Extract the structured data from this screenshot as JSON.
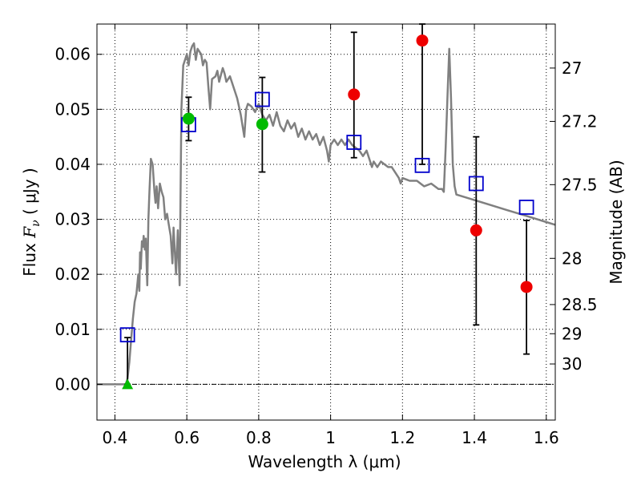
{
  "chart_data": {
    "type": "scatter",
    "xlabel": "Wavelength  λ (μm)",
    "ylabel_prefix": "Flux  ",
    "ylabel_symbol": "F",
    "ylabel_sub": "ν",
    "ylabel_suffix": "  ( μJy )",
    "y2label": "Magnitude (AB)",
    "xlim": [
      0.35,
      1.625
    ],
    "ylim": [
      -0.0065,
      0.0655
    ],
    "xticks": [
      0.4,
      0.6,
      0.8,
      1.0,
      1.2,
      1.4,
      1.6
    ],
    "xtick_labels": [
      "0.4",
      "0.6",
      "0.8",
      "1",
      "1.2",
      "1.4",
      "1.6"
    ],
    "yticks": [
      0.0,
      0.01,
      0.02,
      0.03,
      0.04,
      0.05,
      0.06
    ],
    "ytick_labels": [
      "0.00",
      "0.01",
      "0.02",
      "0.03",
      "0.04",
      "0.05",
      "0.06"
    ],
    "y2ticks": [
      {
        "label": "27",
        "flux": 0.0575
      },
      {
        "label": "27.2",
        "flux": 0.0478
      },
      {
        "label": "27.5",
        "flux": 0.0363
      },
      {
        "label": "28",
        "flux": 0.0229
      },
      {
        "label": "28.5",
        "flux": 0.0145
      },
      {
        "label": "29",
        "flux": 0.0092
      },
      {
        "label": "30",
        "flux": 0.0037
      }
    ],
    "grid": true,
    "model_sed": {
      "color": "#808080",
      "points": [
        [
          0.35,
          0.0
        ],
        [
          0.43,
          0.0
        ],
        [
          0.435,
          0.001
        ],
        [
          0.44,
          0.004
        ],
        [
          0.445,
          0.008
        ],
        [
          0.45,
          0.012
        ],
        [
          0.455,
          0.015
        ],
        [
          0.46,
          0.0165
        ],
        [
          0.465,
          0.02
        ],
        [
          0.468,
          0.017
        ],
        [
          0.47,
          0.024
        ],
        [
          0.472,
          0.021
        ],
        [
          0.475,
          0.026
        ],
        [
          0.478,
          0.025
        ],
        [
          0.48,
          0.027
        ],
        [
          0.483,
          0.0245
        ],
        [
          0.486,
          0.0265
        ],
        [
          0.49,
          0.018
        ],
        [
          0.493,
          0.03
        ],
        [
          0.496,
          0.035
        ],
        [
          0.5,
          0.041
        ],
        [
          0.505,
          0.04
        ],
        [
          0.51,
          0.035
        ],
        [
          0.513,
          0.033
        ],
        [
          0.516,
          0.036
        ],
        [
          0.52,
          0.032
        ],
        [
          0.525,
          0.0365
        ],
        [
          0.53,
          0.035
        ],
        [
          0.535,
          0.034
        ],
        [
          0.54,
          0.03
        ],
        [
          0.545,
          0.031
        ],
        [
          0.55,
          0.029
        ],
        [
          0.555,
          0.027
        ],
        [
          0.56,
          0.022
        ],
        [
          0.563,
          0.0285
        ],
        [
          0.566,
          0.025
        ],
        [
          0.57,
          0.02
        ],
        [
          0.575,
          0.028
        ],
        [
          0.58,
          0.018
        ],
        [
          0.585,
          0.05
        ],
        [
          0.59,
          0.058
        ],
        [
          0.6,
          0.06
        ],
        [
          0.605,
          0.058
        ],
        [
          0.61,
          0.0605
        ],
        [
          0.615,
          0.0615
        ],
        [
          0.62,
          0.062
        ],
        [
          0.625,
          0.059
        ],
        [
          0.63,
          0.061
        ],
        [
          0.64,
          0.06
        ],
        [
          0.645,
          0.058
        ],
        [
          0.65,
          0.059
        ],
        [
          0.655,
          0.0585
        ],
        [
          0.66,
          0.054
        ],
        [
          0.665,
          0.05
        ],
        [
          0.67,
          0.0555
        ],
        [
          0.68,
          0.056
        ],
        [
          0.685,
          0.057
        ],
        [
          0.69,
          0.055
        ],
        [
          0.7,
          0.0575
        ],
        [
          0.705,
          0.0565
        ],
        [
          0.71,
          0.055
        ],
        [
          0.72,
          0.056
        ],
        [
          0.73,
          0.054
        ],
        [
          0.74,
          0.052
        ],
        [
          0.75,
          0.049
        ],
        [
          0.755,
          0.047
        ],
        [
          0.76,
          0.045
        ],
        [
          0.765,
          0.05
        ],
        [
          0.77,
          0.051
        ],
        [
          0.78,
          0.0505
        ],
        [
          0.79,
          0.0495
        ],
        [
          0.8,
          0.051
        ],
        [
          0.81,
          0.049
        ],
        [
          0.82,
          0.048
        ],
        [
          0.83,
          0.049
        ],
        [
          0.84,
          0.047
        ],
        [
          0.85,
          0.0495
        ],
        [
          0.86,
          0.047
        ],
        [
          0.87,
          0.046
        ],
        [
          0.88,
          0.048
        ],
        [
          0.89,
          0.0465
        ],
        [
          0.9,
          0.0475
        ],
        [
          0.91,
          0.045
        ],
        [
          0.92,
          0.0465
        ],
        [
          0.93,
          0.0445
        ],
        [
          0.94,
          0.046
        ],
        [
          0.95,
          0.0445
        ],
        [
          0.96,
          0.0455
        ],
        [
          0.97,
          0.0435
        ],
        [
          0.98,
          0.045
        ],
        [
          0.99,
          0.0425
        ],
        [
          0.995,
          0.0405
        ],
        [
          1.0,
          0.0435
        ],
        [
          1.01,
          0.0445
        ],
        [
          1.02,
          0.0435
        ],
        [
          1.03,
          0.0445
        ],
        [
          1.04,
          0.0435
        ],
        [
          1.05,
          0.0445
        ],
        [
          1.06,
          0.0435
        ],
        [
          1.07,
          0.043
        ],
        [
          1.08,
          0.0425
        ],
        [
          1.09,
          0.0415
        ],
        [
          1.1,
          0.0425
        ],
        [
          1.11,
          0.0405
        ],
        [
          1.115,
          0.0395
        ],
        [
          1.12,
          0.0405
        ],
        [
          1.13,
          0.0395
        ],
        [
          1.14,
          0.0405
        ],
        [
          1.15,
          0.04
        ],
        [
          1.16,
          0.0395
        ],
        [
          1.17,
          0.0395
        ],
        [
          1.18,
          0.0385
        ],
        [
          1.19,
          0.0375
        ],
        [
          1.195,
          0.0365
        ],
        [
          1.2,
          0.0375
        ],
        [
          1.22,
          0.037
        ],
        [
          1.24,
          0.037
        ],
        [
          1.26,
          0.036
        ],
        [
          1.28,
          0.0365
        ],
        [
          1.3,
          0.0355
        ],
        [
          1.31,
          0.0355
        ],
        [
          1.315,
          0.035
        ],
        [
          1.32,
          0.043
        ],
        [
          1.325,
          0.052
        ],
        [
          1.33,
          0.061
        ],
        [
          1.335,
          0.052
        ],
        [
          1.34,
          0.04
        ],
        [
          1.345,
          0.036
        ],
        [
          1.35,
          0.0345
        ],
        [
          1.4,
          0.0335
        ],
        [
          1.45,
          0.0325
        ],
        [
          1.5,
          0.0315
        ],
        [
          1.55,
          0.0305
        ],
        [
          1.6,
          0.0295
        ],
        [
          1.625,
          0.029
        ]
      ]
    },
    "model_photometry": {
      "marker": "open-square",
      "color": "#0000cc",
      "points": [
        {
          "x": 0.435,
          "y": 0.009
        },
        {
          "x": 0.605,
          "y": 0.0472
        },
        {
          "x": 0.81,
          "y": 0.0518
        },
        {
          "x": 1.065,
          "y": 0.044
        },
        {
          "x": 1.255,
          "y": 0.0398
        },
        {
          "x": 1.405,
          "y": 0.0365
        },
        {
          "x": 1.545,
          "y": 0.0322
        }
      ]
    },
    "observed_green": {
      "marker": "filled-circle",
      "color": "#00bb00",
      "points": [
        {
          "x": 0.605,
          "y": 0.0483,
          "yerr_low": 0.0443,
          "yerr_high": 0.0522
        },
        {
          "x": 0.81,
          "y": 0.0473,
          "yerr_low": 0.0386,
          "yerr_high": 0.0558
        }
      ]
    },
    "observed_red": {
      "marker": "filled-circle",
      "color": "#ee0000",
      "points": [
        {
          "x": 1.065,
          "y": 0.0527,
          "yerr_low": 0.0412,
          "yerr_high": 0.064
        },
        {
          "x": 1.255,
          "y": 0.0625,
          "yerr_low": 0.04,
          "yerr_high": 0.0655
        },
        {
          "x": 1.405,
          "y": 0.028,
          "yerr_low": 0.0108,
          "yerr_high": 0.045
        },
        {
          "x": 1.545,
          "y": 0.0177,
          "yerr_low": 0.0055,
          "yerr_high": 0.0298
        }
      ]
    },
    "upper_limit": {
      "marker": "triangle",
      "color": "#00bb00",
      "x": 0.435,
      "y": 0.0,
      "yerr_high": 0.0085
    }
  }
}
